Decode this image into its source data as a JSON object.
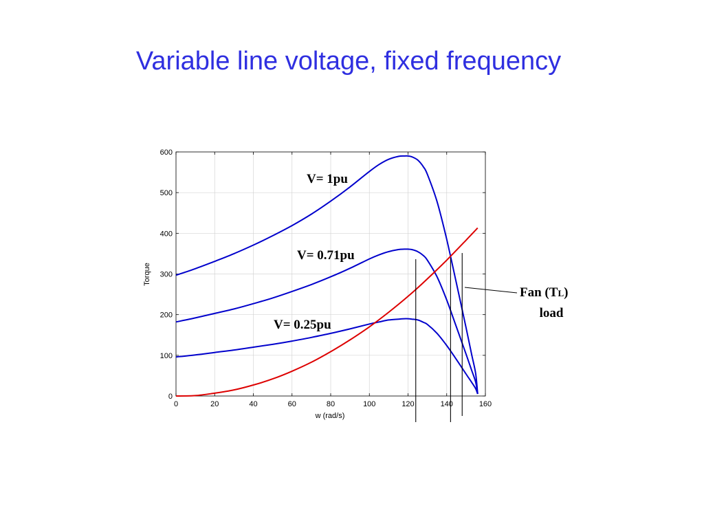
{
  "slide": {
    "title": "Variable line voltage, fixed frequency"
  },
  "colors": {
    "title": "#2f2fe0",
    "motor_curves": "#0000cc",
    "load_curve": "#dd0000",
    "markers": "#000000",
    "grid": "#d4d4d4"
  },
  "chart_data": {
    "type": "line",
    "xlabel": "w (rad/s)",
    "ylabel": "Torque",
    "xlim": [
      0,
      160
    ],
    "ylim": [
      0,
      600
    ],
    "xticks": [
      0,
      20,
      40,
      60,
      80,
      100,
      120,
      140,
      160
    ],
    "yticks": [
      0,
      100,
      200,
      300,
      400,
      500,
      600
    ],
    "grid": true,
    "series": [
      {
        "name": "V= 1pu",
        "role": "motor",
        "x": [
          0,
          10,
          20,
          30,
          40,
          50,
          60,
          70,
          80,
          90,
          100,
          105,
          110,
          115,
          118,
          120,
          122,
          125,
          128,
          130,
          135,
          140,
          145,
          150,
          153,
          155,
          156
        ],
        "y": [
          297,
          313,
          331,
          350,
          371,
          394,
          419,
          447,
          479,
          514,
          552,
          569,
          582,
          589,
          590,
          590,
          588,
          580,
          563,
          545,
          478,
          385,
          278,
          168,
          100,
          55,
          5
        ]
      },
      {
        "name": "V= 0.71pu",
        "role": "motor",
        "x": [
          0,
          10,
          20,
          30,
          40,
          50,
          60,
          70,
          80,
          90,
          100,
          105,
          110,
          115,
          118,
          120,
          122,
          125,
          128,
          130,
          135,
          140,
          145,
          150,
          153,
          155,
          156
        ],
        "y": [
          182,
          192,
          203,
          214,
          227,
          241,
          257,
          274,
          293,
          314,
          337,
          347,
          355,
          360,
          361,
          361,
          360,
          355,
          345,
          334,
          293,
          236,
          170,
          103,
          62,
          34,
          5
        ]
      },
      {
        "name": "V= 0.25pu",
        "role": "motor",
        "x": [
          0,
          10,
          20,
          30,
          40,
          50,
          60,
          70,
          80,
          90,
          100,
          105,
          110,
          115,
          118,
          120,
          122,
          125,
          128,
          130,
          135,
          140,
          145,
          150,
          153,
          155,
          156
        ],
        "y": [
          96,
          101,
          107,
          113,
          120,
          127,
          135,
          144,
          154,
          165,
          177,
          182,
          187,
          189,
          190,
          190,
          189,
          187,
          181,
          176,
          154,
          124,
          90,
          54,
          33,
          18,
          5
        ]
      },
      {
        "name": "Fan (TL) load",
        "role": "load",
        "x": [
          0,
          10,
          20,
          30,
          40,
          50,
          60,
          70,
          80,
          90,
          100,
          110,
          120,
          130,
          140,
          150,
          156
        ],
        "y": [
          0,
          1,
          7,
          15,
          27,
          42,
          61,
          83,
          109,
          138,
          170,
          206,
          245,
          288,
          334,
          383,
          413
        ]
      }
    ],
    "operating_points_w": [
      124,
      142,
      148
    ],
    "annotations": [
      {
        "text": "V= 1pu"
      },
      {
        "text": "V= 0.71pu"
      },
      {
        "text": "V= 0.25pu"
      },
      {
        "text": "Fan (T",
        "sub": "L",
        "suffix": ")",
        "line2": "load"
      }
    ]
  }
}
